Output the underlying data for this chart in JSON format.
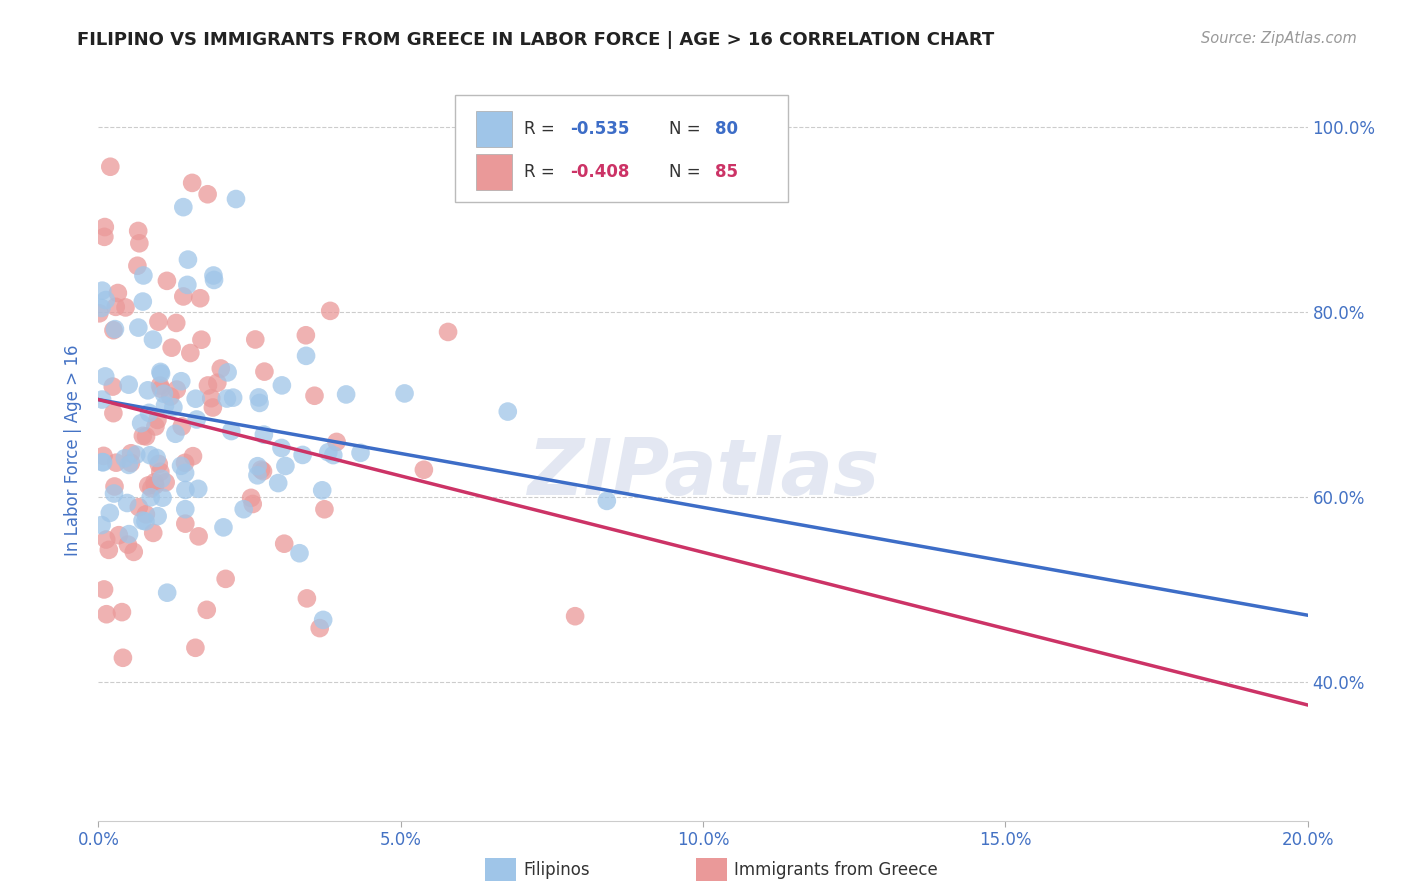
{
  "title": "FILIPINO VS IMMIGRANTS FROM GREECE IN LABOR FORCE | AGE > 16 CORRELATION CHART",
  "source": "Source: ZipAtlas.com",
  "ylabel": "In Labor Force | Age > 16",
  "xlim": [
    0.0,
    0.2
  ],
  "ylim": [
    0.25,
    1.05
  ],
  "xticks": [
    0.0,
    0.05,
    0.1,
    0.15,
    0.2
  ],
  "xticklabels": [
    "0.0%",
    "5.0%",
    "10.0%",
    "15.0%",
    "20.0%"
  ],
  "yticks": [
    0.4,
    0.6,
    0.8,
    1.0
  ],
  "yticklabels": [
    "40.0%",
    "60.0%",
    "80.0%",
    "100.0%"
  ],
  "filipino_R": -0.535,
  "filipino_N": 80,
  "greece_R": -0.408,
  "greece_N": 85,
  "blue_color": "#9fc5e8",
  "pink_color": "#ea9999",
  "blue_line_color": "#3d6dc7",
  "pink_line_color": "#cc3366",
  "legend_label_blue": "Filipinos",
  "legend_label_pink": "Immigrants from Greece",
  "watermark": "ZIPatlas",
  "background_color": "#ffffff",
  "grid_color": "#cccccc",
  "title_color": "#222222",
  "axis_label_color": "#4472c4",
  "tick_color": "#4472c4",
  "blue_intercept": 0.705,
  "blue_slope": -1.165,
  "pink_intercept": 0.705,
  "pink_slope": -1.65
}
